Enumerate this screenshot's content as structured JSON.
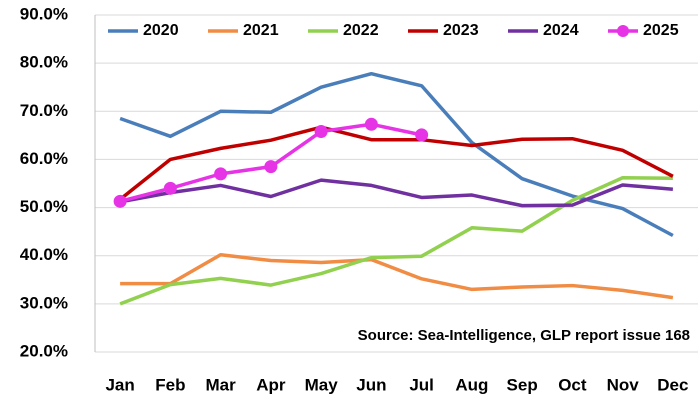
{
  "chart_data": {
    "type": "line",
    "categories": [
      "Jan",
      "Feb",
      "Mar",
      "Apr",
      "May",
      "Jun",
      "Jul",
      "Aug",
      "Sep",
      "Oct",
      "Nov",
      "Dec"
    ],
    "series": [
      {
        "name": "2020",
        "color": "#4a7ebb",
        "marker": false,
        "values": [
          68.5,
          64.8,
          70.0,
          69.8,
          75.0,
          77.8,
          75.3,
          63.5,
          56.0,
          52.4,
          49.8,
          44.2
        ]
      },
      {
        "name": "2021",
        "color": "#f08c44",
        "marker": false,
        "values": [
          34.2,
          34.2,
          40.2,
          39.0,
          38.6,
          39.2,
          35.2,
          33.0,
          33.5,
          33.8,
          32.8,
          31.3
        ]
      },
      {
        "name": "2022",
        "color": "#92d050",
        "marker": false,
        "values": [
          30.0,
          34.0,
          35.3,
          33.9,
          36.3,
          39.6,
          39.9,
          45.8,
          45.1,
          51.5,
          56.2,
          56.1
        ]
      },
      {
        "name": "2023",
        "color": "#c00000",
        "marker": false,
        "values": [
          51.7,
          60.0,
          62.3,
          64.0,
          66.7,
          64.1,
          64.1,
          62.9,
          64.2,
          64.3,
          61.9,
          56.5
        ]
      },
      {
        "name": "2024",
        "color": "#7030a0",
        "marker": false,
        "values": [
          51.2,
          53.1,
          54.6,
          52.3,
          55.7,
          54.6,
          52.1,
          52.6,
          50.4,
          50.5,
          54.7,
          53.8
        ]
      },
      {
        "name": "2025",
        "color": "#e633e6",
        "marker": true,
        "values": [
          51.3,
          54.0,
          57.0,
          58.5,
          65.8,
          67.3,
          65.1,
          null,
          null,
          null,
          null,
          null
        ]
      }
    ],
    "ylim": [
      20,
      90
    ],
    "yticks": [
      {
        "value": 20,
        "label": "20.0%"
      },
      {
        "value": 30,
        "label": "30.0%"
      },
      {
        "value": 40,
        "label": "40.0%"
      },
      {
        "value": 50,
        "label": "50.0%"
      },
      {
        "value": 60,
        "label": "60.0%"
      },
      {
        "value": 70,
        "label": "70.0%"
      },
      {
        "value": 80,
        "label": "80.0%"
      },
      {
        "value": 90,
        "label": "90.0%"
      }
    ],
    "grid": true,
    "legend": "top",
    "annotation": "Source: Sea-Intelligence, GLP report issue 168"
  }
}
